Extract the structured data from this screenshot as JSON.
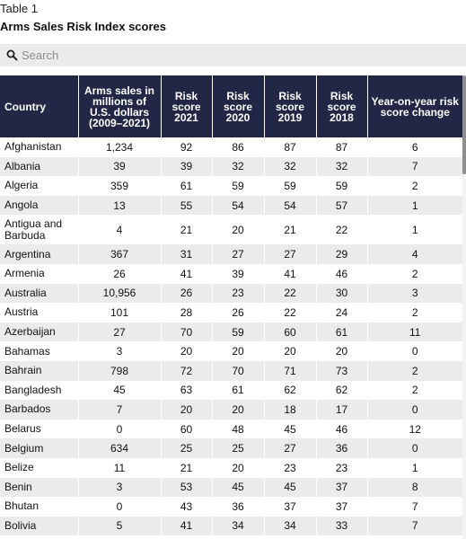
{
  "kicker": "Table 1",
  "title": "Arms Sales Risk Index scores",
  "search": {
    "placeholder": "Search",
    "icon": "search-icon"
  },
  "table": {
    "headers": [
      "Country",
      "Arms sales in millions of U.S. dollars (2009–2021)",
      "Risk score 2021",
      "Risk score 2020",
      "Risk score 2019",
      "Risk score 2018",
      "Year-on-year risk score change"
    ],
    "rows": [
      [
        "Afghanistan",
        "1,234",
        "92",
        "86",
        "87",
        "87",
        "6"
      ],
      [
        "Albania",
        "39",
        "39",
        "32",
        "32",
        "32",
        "7"
      ],
      [
        "Algeria",
        "359",
        "61",
        "59",
        "59",
        "59",
        "2"
      ],
      [
        "Angola",
        "13",
        "55",
        "54",
        "54",
        "57",
        "1"
      ],
      [
        "Antigua and Barbuda",
        "4",
        "21",
        "20",
        "21",
        "22",
        "1"
      ],
      [
        "Argentina",
        "367",
        "31",
        "27",
        "27",
        "29",
        "4"
      ],
      [
        "Armenia",
        "26",
        "41",
        "39",
        "41",
        "46",
        "2"
      ],
      [
        "Australia",
        "10,956",
        "26",
        "23",
        "22",
        "30",
        "3"
      ],
      [
        "Austria",
        "101",
        "28",
        "26",
        "22",
        "24",
        "2"
      ],
      [
        "Azerbaijan",
        "27",
        "70",
        "59",
        "60",
        "61",
        "11"
      ],
      [
        "Bahamas",
        "3",
        "20",
        "20",
        "20",
        "20",
        "0"
      ],
      [
        "Bahrain",
        "798",
        "72",
        "70",
        "71",
        "73",
        "2"
      ],
      [
        "Bangladesh",
        "45",
        "63",
        "61",
        "62",
        "62",
        "2"
      ],
      [
        "Barbados",
        "7",
        "20",
        "20",
        "18",
        "17",
        "0"
      ],
      [
        "Belarus",
        "0",
        "60",
        "48",
        "45",
        "46",
        "12"
      ],
      [
        "Belgium",
        "634",
        "25",
        "25",
        "27",
        "36",
        "0"
      ],
      [
        "Belize",
        "11",
        "21",
        "20",
        "23",
        "23",
        "1"
      ],
      [
        "Benin",
        "3",
        "53",
        "45",
        "45",
        "37",
        "8"
      ],
      [
        "Bhutan",
        "0",
        "43",
        "36",
        "37",
        "37",
        "7"
      ],
      [
        "Bolivia",
        "5",
        "41",
        "34",
        "34",
        "33",
        "7"
      ]
    ]
  }
}
